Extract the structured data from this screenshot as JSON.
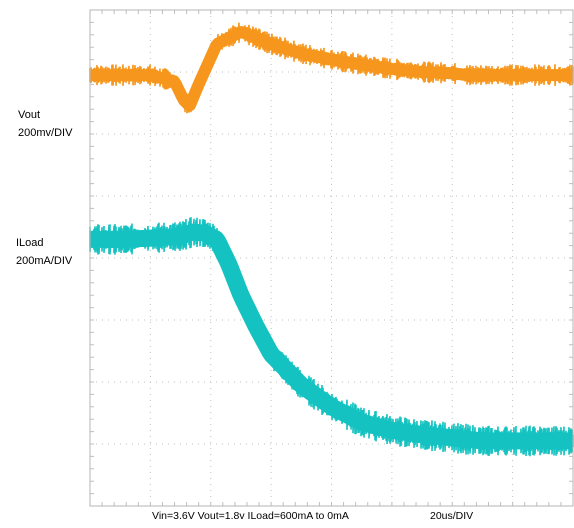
{
  "labels": {
    "vout_name": "Vout",
    "vout_scale": "200mv/DIV",
    "iload_name": "ILoad",
    "iload_scale": "200mA/DIV",
    "conditions": "Vin=3.6V Vout=1.8v ILoad=600mA to 0mA",
    "timebase": "20us/DIV"
  },
  "colors": {
    "vout": "#f7961c",
    "iload": "#14c3c1",
    "grid": "#bfbfbf",
    "frame": "#b4b4b4"
  },
  "chart_data": {
    "type": "line",
    "grid": true,
    "x_divisions": 8,
    "y_divisions": 8,
    "x_unit": "us",
    "x_per_div": 20,
    "xlim": [
      0,
      160
    ],
    "series": [
      {
        "name": "Vout",
        "unit": "mV",
        "ylim_div": [
          0,
          8
        ],
        "noise_div": 0.35,
        "x": [
          0,
          10,
          20,
          28,
          31,
          33,
          36,
          42,
          50,
          60,
          70,
          80,
          90,
          100,
          110,
          120,
          125,
          130,
          140,
          150,
          160
        ],
        "y": [
          6.95,
          6.95,
          6.95,
          6.85,
          6.55,
          6.45,
          6.8,
          7.45,
          7.65,
          7.45,
          7.3,
          7.2,
          7.12,
          7.05,
          7.0,
          6.98,
          6.95,
          6.95,
          6.95,
          6.95,
          6.95
        ]
      },
      {
        "name": "ILoad",
        "unit": "mA",
        "ylim_div": [
          0,
          8
        ],
        "noise_div": 0.5,
        "x": [
          0,
          10,
          20,
          30,
          34,
          38,
          42,
          46,
          50,
          55,
          60,
          70,
          80,
          90,
          100,
          110,
          120,
          130,
          140,
          150,
          160
        ],
        "y": [
          4.3,
          4.3,
          4.32,
          4.35,
          4.42,
          4.4,
          4.3,
          3.9,
          3.4,
          2.9,
          2.45,
          1.95,
          1.6,
          1.35,
          1.22,
          1.15,
          1.1,
          1.05,
          1.05,
          1.05,
          1.05
        ]
      }
    ]
  }
}
